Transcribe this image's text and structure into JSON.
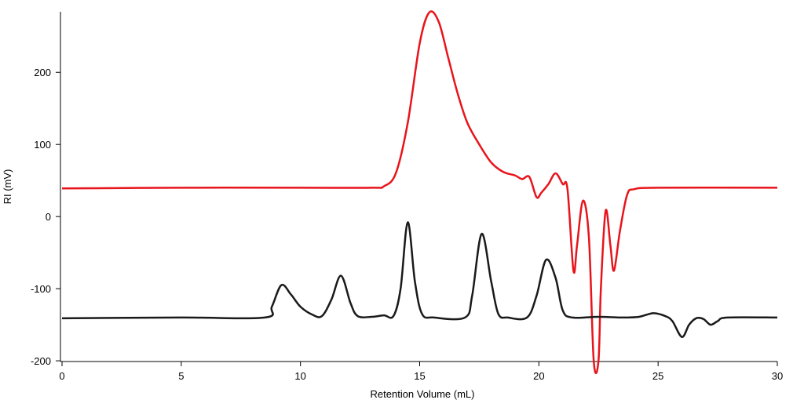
{
  "chart_data": {
    "type": "line",
    "xlabel": "Retention Volume (mL)",
    "ylabel": "RI (mV)",
    "xlim": [
      0,
      30
    ],
    "ylim": [
      -201,
      284
    ],
    "xticks": [
      0,
      5,
      10,
      15,
      20,
      25,
      30
    ],
    "yticks": [
      -200,
      -100,
      0,
      100,
      200
    ],
    "grid": false,
    "series": [
      {
        "color": "#e8141b",
        "x": [
          0,
          5,
          10,
          13,
          13.5,
          14,
          14.5,
          15,
          15.4,
          15.8,
          16.2,
          16.6,
          17,
          17.5,
          18,
          18.5,
          19,
          19.3,
          19.6,
          19.9,
          20.1,
          20.4,
          20.7,
          21,
          21.2,
          21.45,
          21.6,
          21.85,
          22.1,
          22.3,
          22.5,
          22.6,
          22.8,
          23,
          23.15,
          23.4,
          23.7,
          24,
          25,
          30
        ],
        "values": [
          39,
          40,
          40,
          40,
          42,
          60,
          130,
          240,
          283,
          270,
          220,
          170,
          130,
          100,
          75,
          62,
          57,
          52,
          55,
          27,
          33,
          45,
          60,
          45,
          38,
          -75,
          -40,
          22,
          -30,
          -200,
          -200,
          -100,
          8,
          -40,
          -75,
          -20,
          30,
          38,
          40,
          40
        ]
      },
      {
        "color": "#1a1a1a",
        "x": [
          0,
          5,
          8.5,
          8.8,
          9.2,
          9.6,
          10,
          10.5,
          10.9,
          11.3,
          11.7,
          12.1,
          12.4,
          13,
          13.5,
          13.9,
          14.2,
          14.5,
          14.8,
          15.1,
          15.6,
          16.9,
          17.2,
          17.6,
          18,
          18.3,
          18.7,
          19.5,
          19.9,
          20.3,
          20.7,
          21,
          21.4,
          22.5,
          23.5,
          24.2,
          24.8,
          25.3,
          25.6,
          26,
          26.3,
          26.6,
          26.9,
          27.2,
          27.5,
          27.9,
          30
        ],
        "values": [
          -141,
          -140,
          -140,
          -125,
          -95,
          -108,
          -125,
          -136,
          -138,
          -115,
          -82,
          -120,
          -138,
          -139,
          -137,
          -138,
          -100,
          -8,
          -90,
          -135,
          -140,
          -140,
          -110,
          -24,
          -90,
          -135,
          -140,
          -140,
          -110,
          -60,
          -85,
          -130,
          -140,
          -139,
          -140,
          -139,
          -134,
          -138,
          -145,
          -167,
          -150,
          -141,
          -142,
          -150,
          -145,
          -140,
          -140
        ]
      }
    ]
  }
}
